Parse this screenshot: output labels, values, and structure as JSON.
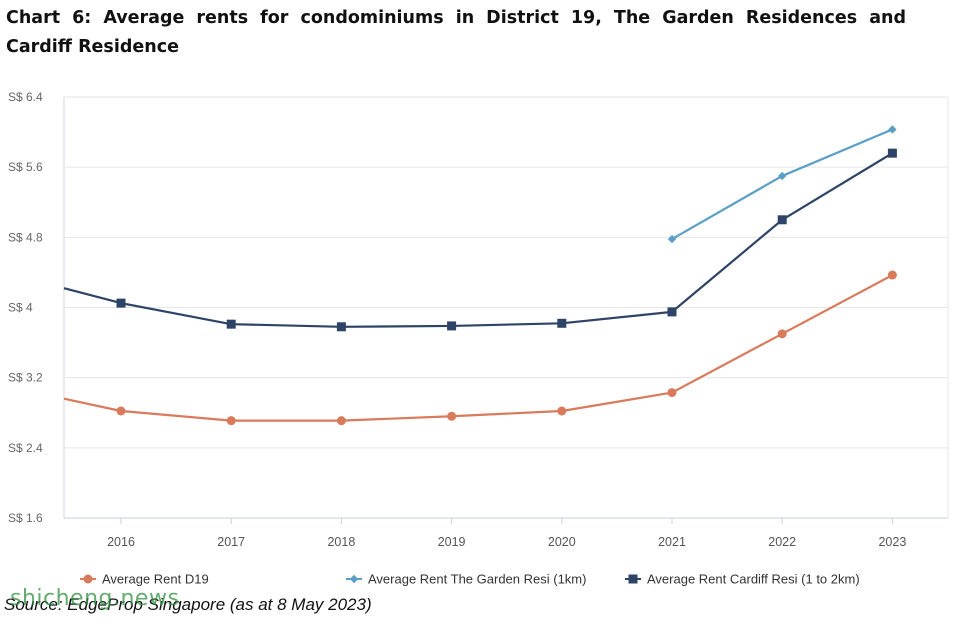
{
  "chart_data": {
    "type": "line",
    "title": "Chart 6: Average rents for condominiums in District 19, The Garden Residences and Cardiff Residence",
    "categories": [
      "2016",
      "2017",
      "2018",
      "2019",
      "2020",
      "2021",
      "2022",
      "2023"
    ],
    "ylim": [
      1.6,
      6.4
    ],
    "yticks": [
      1.6,
      2.4,
      3.2,
      4,
      4.8,
      5.6,
      6.4
    ],
    "ytick_labels": [
      "S$ 1.6",
      "S$ 2.4",
      "S$ 3.2",
      "S$ 4",
      "S$ 4.8",
      "S$ 5.6",
      "S$ 6.4"
    ],
    "grid": true,
    "legend_position": "bottom",
    "series": [
      {
        "name": "Average Rent D19",
        "color": "#d97a5b",
        "marker": "circle",
        "values": [
          2.82,
          2.71,
          2.71,
          2.76,
          2.82,
          3.03,
          3.7,
          4.37
        ],
        "lead_in": 2.96
      },
      {
        "name": "Average Rent The Garden Resi (1km)",
        "color": "#5b9fc7",
        "marker": "diamond",
        "values": [
          null,
          null,
          null,
          null,
          null,
          4.78,
          5.5,
          6.03
        ]
      },
      {
        "name": "Average Rent Cardiff Resi (1 to 2km)",
        "color": "#2d4466",
        "marker": "square",
        "values": [
          4.05,
          3.81,
          3.78,
          3.79,
          3.82,
          3.95,
          5.0,
          5.76
        ],
        "lead_in": 4.22
      }
    ]
  },
  "source": "Source: EdgeProp Singapore (as at 8 May 2023)",
  "watermark": "shicheng.news"
}
